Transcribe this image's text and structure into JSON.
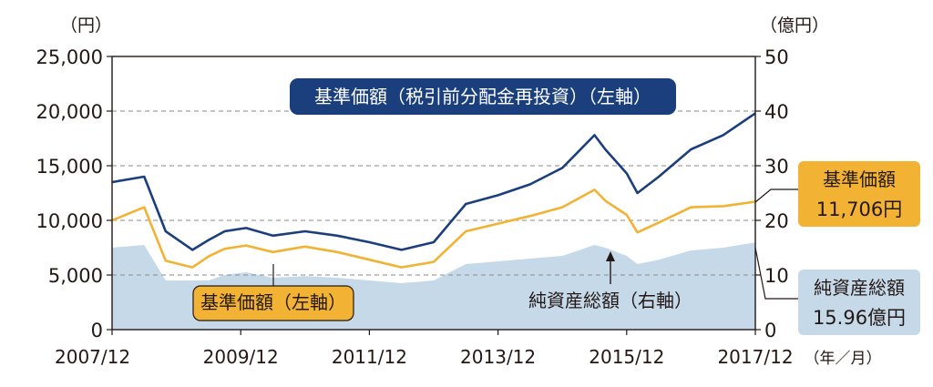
{
  "chart_data": {
    "type": "area",
    "left_axis": {
      "unit_label": "（円）",
      "ylim": [
        0,
        25000
      ],
      "ticks": [
        "0",
        "5,000",
        "10,000",
        "15,000",
        "20,000",
        "25,000"
      ]
    },
    "right_axis": {
      "unit_label": "（億円）",
      "ylim": [
        0,
        50
      ],
      "ticks": [
        "0",
        "10",
        "20",
        "30",
        "40",
        "50"
      ]
    },
    "x_axis": {
      "categories": [
        "2007/12",
        "2009/12",
        "2011/12",
        "2013/12",
        "2015/12",
        "2017/12"
      ],
      "unit_label": "（年／月）",
      "xlim": [
        "2007/12",
        "2017/12"
      ]
    },
    "grid": "dashed horizontal",
    "series": [
      {
        "name": "基準価額（税引前分配金再投資）（左軸）",
        "axis": "left",
        "color": "#1b3f7c",
        "x": [
          "2007/12",
          "2008/06",
          "2008/10",
          "2009/03",
          "2009/06",
          "2009/09",
          "2010/01",
          "2010/06",
          "2010/12",
          "2011/06",
          "2011/12",
          "2012/06",
          "2012/12",
          "2013/06",
          "2013/12",
          "2014/06",
          "2014/12",
          "2015/06",
          "2015/08",
          "2015/12",
          "2016/02",
          "2016/06",
          "2016/12",
          "2017/06",
          "2017/12"
        ],
        "values": [
          13500,
          14000,
          9000,
          7300,
          8200,
          9000,
          9300,
          8600,
          9000,
          8600,
          8000,
          7300,
          8000,
          11500,
          12300,
          13300,
          14800,
          17800,
          16500,
          14300,
          12500,
          14000,
          16500,
          17800,
          19800
        ]
      },
      {
        "name": "基準価額（左軸）",
        "axis": "left",
        "color": "#f2b233",
        "x": [
          "2007/12",
          "2008/06",
          "2008/10",
          "2009/03",
          "2009/06",
          "2009/09",
          "2010/01",
          "2010/06",
          "2010/12",
          "2011/06",
          "2011/12",
          "2012/06",
          "2012/12",
          "2013/06",
          "2013/12",
          "2014/06",
          "2014/12",
          "2015/06",
          "2015/08",
          "2015/12",
          "2016/02",
          "2016/06",
          "2016/12",
          "2017/06",
          "2017/12"
        ],
        "values": [
          10000,
          11200,
          6300,
          5700,
          6700,
          7400,
          7700,
          7100,
          7600,
          7100,
          6400,
          5700,
          6200,
          9000,
          9700,
          10400,
          11200,
          12800,
          11800,
          10500,
          8900,
          9800,
          11200,
          11300,
          11706
        ]
      },
      {
        "name": "純資産総額（右軸）",
        "axis": "right",
        "color": "#c5d9e8",
        "x": [
          "2007/12",
          "2008/06",
          "2008/10",
          "2009/03",
          "2009/06",
          "2009/09",
          "2010/01",
          "2010/06",
          "2010/12",
          "2011/06",
          "2011/12",
          "2012/06",
          "2012/12",
          "2013/06",
          "2013/12",
          "2014/06",
          "2014/12",
          "2015/06",
          "2015/08",
          "2015/12",
          "2016/02",
          "2016/06",
          "2016/12",
          "2017/06",
          "2017/12"
        ],
        "values": [
          15,
          15.5,
          9,
          9,
          9,
          10,
          10.5,
          9.5,
          9.8,
          9.5,
          9,
          8.5,
          9,
          12,
          12.5,
          13,
          13.5,
          15.5,
          15,
          13.5,
          12,
          12.8,
          14.5,
          15,
          15.96
        ]
      }
    ],
    "annotations": {
      "callout_nav_reinvested": "基準価額（税引前分配金再投資）（左軸）",
      "callout_nav": "基準価額（左軸）",
      "callout_net_assets": "純資産総額（右軸）",
      "end_nav_label": "基準価額",
      "end_nav_value": "11,706円",
      "end_assets_label": "純資産総額",
      "end_assets_value": "15.96億円"
    }
  }
}
